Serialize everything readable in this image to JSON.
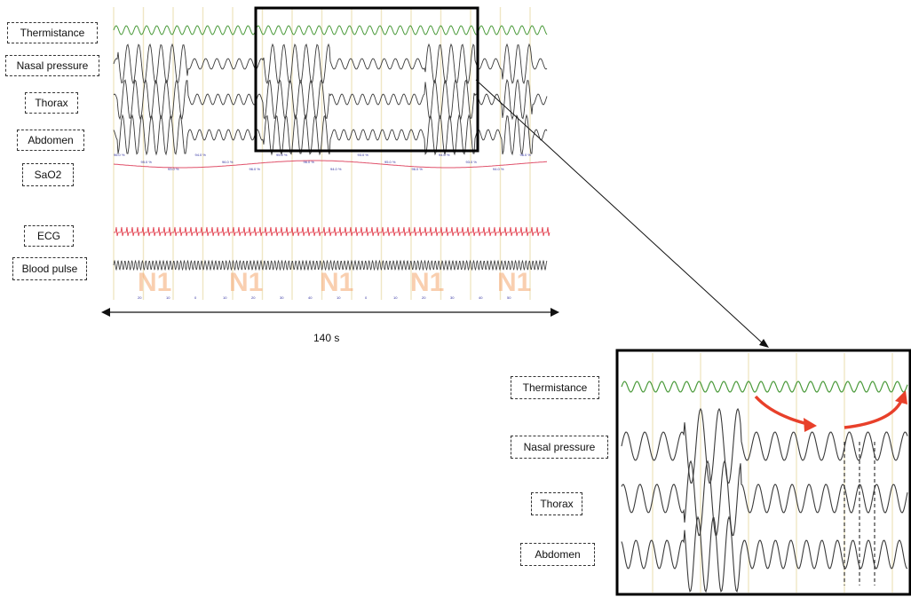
{
  "overview": {
    "labels": [
      "Thermistance",
      "Nasal pressure",
      "Thorax",
      "Abdomen",
      "SaO2",
      "ECG",
      "Blood pulse"
    ],
    "sao2_values": [
      "96.0 %",
      "95.0 %",
      "93.0 %",
      "94.0 %",
      "96.0 %",
      "96.0 %",
      "95.0 %",
      "96.0 %",
      "94.0 %",
      "93.0 %",
      "95.0 %",
      "96.0 %",
      "94.0 %",
      "93.0 %",
      "94.0 %",
      "96.0 %"
    ],
    "stage_labels": [
      "N1",
      "N1",
      "N1",
      "N1",
      "N1"
    ],
    "time_ticks": [
      "20",
      "10",
      "0",
      "10",
      "20",
      "30",
      "40",
      "10",
      "0",
      "10",
      "20",
      "30",
      "40",
      "50"
    ]
  },
  "duration_label": "140 s",
  "zoom": {
    "labels": [
      "Thermistance",
      "Nasal pressure",
      "Thorax",
      "Abdomen"
    ]
  },
  "colors": {
    "thermistance": "#4a9a3a",
    "respiratory": "#3a3a3a",
    "sao2": "#e0506a",
    "ecg": "#e03040",
    "epoch_lines": "#efe6c4",
    "stage_label": "#f5a870",
    "arrow": "#e8402a"
  }
}
